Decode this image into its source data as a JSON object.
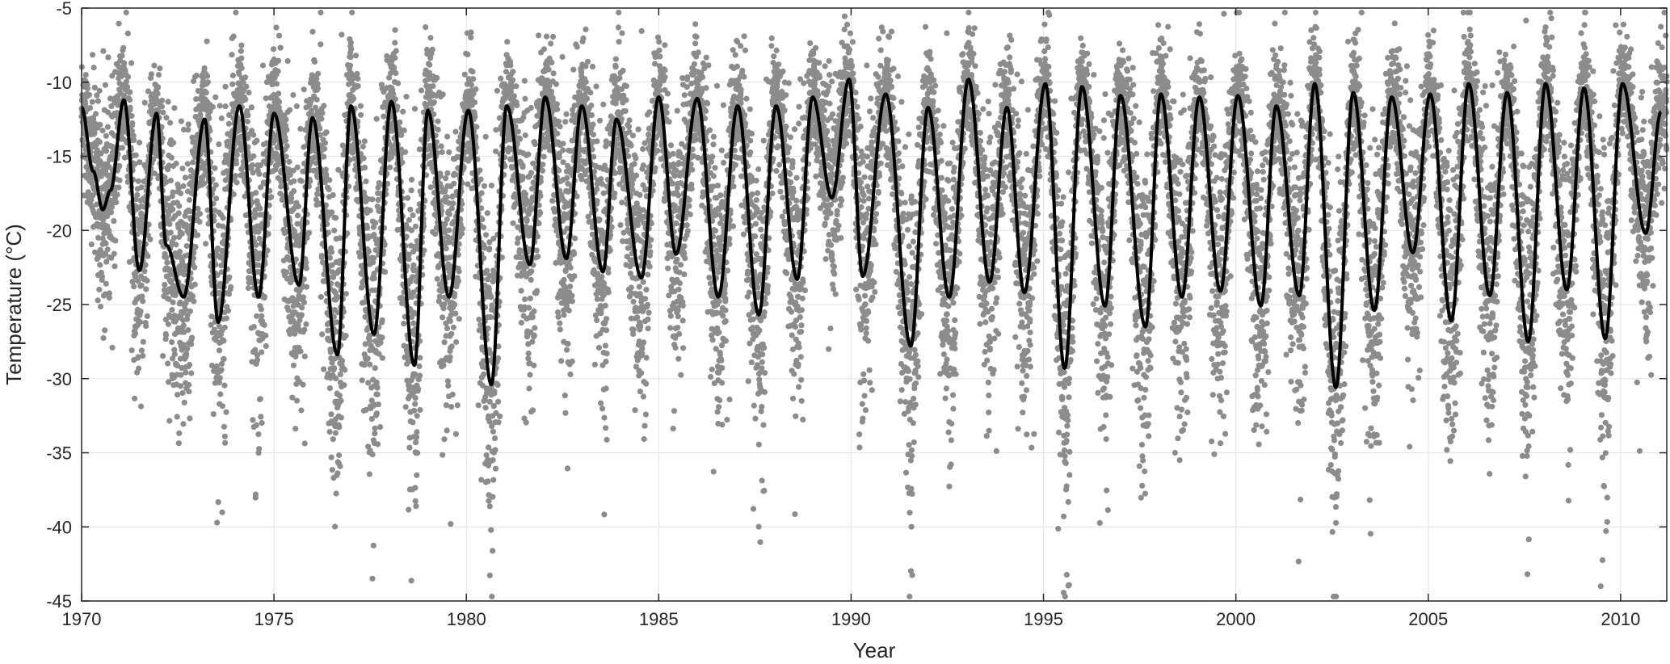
{
  "chart_data": {
    "type": "scatter",
    "title": "",
    "xlabel": "Year",
    "ylabel": "Temperature (°C)",
    "xlim": [
      1970,
      2011.2
    ],
    "ylim": [
      -45,
      -5
    ],
    "xticks": [
      1970,
      1975,
      1980,
      1985,
      1990,
      1995,
      2000,
      2005,
      2010
    ],
    "yticks": [
      -5,
      -10,
      -15,
      -20,
      -25,
      -30,
      -35,
      -40,
      -45
    ],
    "grid": true,
    "legend": "none",
    "colors": {
      "points": "#8c8c8c",
      "line": "#000000",
      "grid": "#e6e6e6",
      "axis": "#262626"
    },
    "series": [
      {
        "kind": "smoothed-line",
        "x": [
          1970.0,
          1970.3,
          1970.55,
          1970.75,
          1971.1,
          1971.5,
          1971.95,
          1972.2,
          1972.65,
          1973.2,
          1973.55,
          1974.1,
          1974.6,
          1975.0,
          1975.65,
          1976.0,
          1976.65,
          1977.0,
          1977.6,
          1978.05,
          1978.65,
          1979.0,
          1979.55,
          1980.05,
          1980.65,
          1981.05,
          1981.65,
          1982.05,
          1982.6,
          1983.0,
          1983.55,
          1983.9,
          1984.55,
          1985.0,
          1985.45,
          1986.0,
          1986.55,
          1987.05,
          1987.6,
          1988.05,
          1988.6,
          1989.0,
          1989.5,
          1989.95,
          1990.3,
          1990.9,
          1991.55,
          1992.0,
          1992.55,
          1993.05,
          1993.6,
          1994.05,
          1994.5,
          1995.05,
          1995.55,
          1996.0,
          1996.6,
          1997.0,
          1997.65,
          1998.05,
          1998.6,
          1999.05,
          1999.6,
          2000.05,
          2000.65,
          2001.05,
          2001.65,
          2002.05,
          2002.6,
          2003.05,
          2003.6,
          2004.05,
          2004.6,
          2005.05,
          2005.6,
          2006.05,
          2006.6,
          2007.05,
          2007.6,
          2008.05,
          2008.6,
          2009.05,
          2009.6,
          2010.05,
          2010.65,
          2011.05
        ],
        "y": [
          -11.7,
          -16,
          -18.6,
          -17.3,
          -11.2,
          -22.7,
          -12.1,
          -21,
          -24.5,
          -12.5,
          -26.2,
          -11.6,
          -24.5,
          -12.1,
          -23.7,
          -12.4,
          -28.4,
          -11.6,
          -27,
          -11.3,
          -29.1,
          -11.9,
          -24.5,
          -11.9,
          -30.4,
          -11.6,
          -22.3,
          -11,
          -21.9,
          -11.6,
          -22.8,
          -12.5,
          -23.2,
          -11,
          -21.6,
          -11.1,
          -24.5,
          -11.6,
          -25.7,
          -11.6,
          -23.3,
          -11,
          -17.8,
          -9.8,
          -23.1,
          -10.8,
          -27.8,
          -11.7,
          -24.5,
          -9.8,
          -23.5,
          -11.7,
          -24.2,
          -10.1,
          -29.3,
          -10.3,
          -25.1,
          -10.9,
          -26.5,
          -10.8,
          -24.5,
          -11,
          -24.1,
          -10.9,
          -25.1,
          -11.6,
          -24.4,
          -10.1,
          -30.6,
          -10.7,
          -25.4,
          -11,
          -21.5,
          -10.8,
          -26.1,
          -10.1,
          -24.4,
          -10.7,
          -27.5,
          -10.1,
          -24,
          -10.4,
          -27.3,
          -10.1,
          -20.2,
          -12
        ]
      },
      {
        "kind": "daily-points",
        "description_range": [
          1970,
          2011.2
        ]
      }
    ]
  }
}
